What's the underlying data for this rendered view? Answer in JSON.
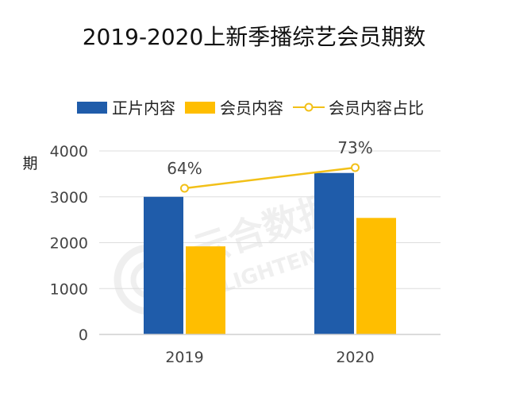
{
  "chart_data": {
    "type": "bar",
    "title": "2019-2020上新季播综艺会员期数",
    "categories": [
      "2019",
      "2020"
    ],
    "series": [
      {
        "name": "正片内容",
        "values": [
          3000,
          3520
        ],
        "color": "#1F5CAA"
      },
      {
        "name": "会员内容",
        "values": [
          1920,
          2540
        ],
        "color": "#FFBE00"
      }
    ],
    "line_series": {
      "name": "会员内容占比",
      "values": [
        64,
        73
      ],
      "labels": [
        "64%",
        "73%"
      ],
      "color": "#F2C018"
    },
    "ylabel": "期",
    "ylim": [
      0,
      4000
    ],
    "yticks": [
      "0",
      "1000",
      "2000",
      "3000",
      "4000"
    ],
    "grid": true,
    "legend_position": "top"
  },
  "watermark": {
    "text": "云合数据",
    "subtext": "ENLIGHTENT"
  }
}
